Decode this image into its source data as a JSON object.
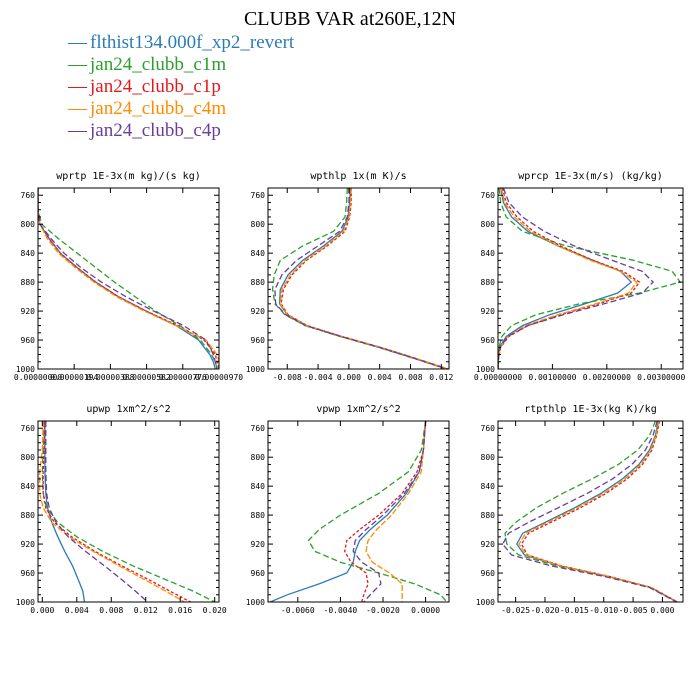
{
  "title": "CLUBB VAR at260E,12N",
  "colors": {
    "flthist134.000f_xp2_revert": "#2b7bb9",
    "jan24_clubb_c1m": "#2ca02c",
    "jan24_clubb_c1p": "#e31a1c",
    "jan24_clubb_c4m": "#ff8c00",
    "jan24_clubb_c4p": "#6a3d9a"
  },
  "legend": [
    {
      "label": "flthist134.000f_xp2_revert",
      "color": "#2b7bb9"
    },
    {
      "label": "jan24_clubb_c1m",
      "color": "#2ca02c"
    },
    {
      "label": "jan24_clubb_c1p",
      "color": "#e31a1c"
    },
    {
      "label": "jan24_clubb_c4m",
      "color": "#ff8c00"
    },
    {
      "label": "jan24_clubb_c4p",
      "color": "#6a3d9a"
    }
  ],
  "chart_data": [
    {
      "type": "line",
      "title": "wprtp  1E-3x(m kg)/(s kg)",
      "xlim": [
        0.0,
        9.7e-06
      ],
      "ylim": [
        1000,
        750
      ],
      "xticks": [
        0.0,
        1.94e-06,
        3.88e-06,
        5.82e-06,
        7.76e-06,
        9.7e-06
      ],
      "xtick_labels": [
        "0.00000000",
        "0.00000194",
        "0.00000388",
        "0.00000582",
        "0.00000776",
        "0.00000970"
      ],
      "yticks": [
        760,
        800,
        840,
        880,
        920,
        960,
        1000
      ],
      "y": [
        750,
        780,
        800,
        820,
        840,
        860,
        880,
        900,
        920,
        940,
        960,
        980,
        990,
        1000
      ],
      "series": [
        {
          "name": "flthist134.000f_xp2_revert",
          "x": [
            0.0,
            0.0,
            1e-07,
            6e-07,
            1.2e-06,
            2.1e-06,
            3.1e-06,
            4.3e-06,
            5.8e-06,
            7.4e-06,
            8.6e-06,
            9.2e-06,
            9.4e-06,
            9.5e-06
          ]
        },
        {
          "name": "jan24_clubb_c1m",
          "x": [
            0.0,
            0.0,
            2e-07,
            1.1e-06,
            2.1e-06,
            3.1e-06,
            4.1e-06,
            5.2e-06,
            6.3e-06,
            7.6e-06,
            8.7e-06,
            9.3e-06,
            9.5e-06,
            9.6e-06
          ]
        },
        {
          "name": "jan24_clubb_c1p",
          "x": [
            0.0,
            0.0,
            1e-07,
            6e-07,
            1.2e-06,
            2.1e-06,
            3.1e-06,
            4.3e-06,
            5.8e-06,
            7.5e-06,
            8.9e-06,
            9.5e-06,
            9.6e-06,
            9.7e-06
          ]
        },
        {
          "name": "jan24_clubb_c4m",
          "x": [
            0.0,
            0.0,
            1e-07,
            5e-07,
            1.1e-06,
            2e-06,
            3e-06,
            4.2e-06,
            5.7e-06,
            7.4e-06,
            9e-06,
            9.6e-06,
            9.7e-06,
            9.7e-06
          ]
        },
        {
          "name": "jan24_clubb_c4p",
          "x": [
            0.0,
            0.0,
            1e-07,
            7e-07,
            1.4e-06,
            2.3e-06,
            3.4e-06,
            4.7e-06,
            6.2e-06,
            7.8e-06,
            9e-06,
            9.4e-06,
            9.5e-06,
            9.6e-06
          ]
        }
      ]
    },
    {
      "type": "line",
      "title": "wpthlp  1x(m K)/s",
      "xlim": [
        -0.0105,
        0.013
      ],
      "ylim": [
        1000,
        750
      ],
      "xticks": [
        -0.008,
        -0.004,
        0.0,
        0.004,
        0.008,
        0.012
      ],
      "xtick_labels": [
        "-0.008",
        "-0.004",
        "0.000",
        "0.004",
        "0.008",
        "0.012"
      ],
      "yticks": [
        760,
        800,
        840,
        880,
        920,
        960,
        1000
      ],
      "y": [
        750,
        770,
        790,
        810,
        830,
        850,
        870,
        890,
        910,
        925,
        940,
        955,
        970,
        985,
        1000
      ],
      "series": [
        {
          "name": "flthist134.000f_xp2_revert",
          "x": [
            0.0002,
            0.0001,
            -0.0001,
            -0.0009,
            -0.0033,
            -0.006,
            -0.0079,
            -0.0089,
            -0.009,
            -0.008,
            -0.0055,
            -0.001,
            0.004,
            0.0085,
            0.0128
          ]
        },
        {
          "name": "jan24_clubb_c1m",
          "x": [
            -0.0002,
            -0.0003,
            -0.0005,
            -0.002,
            -0.006,
            -0.0089,
            -0.0097,
            -0.0099,
            -0.0096,
            -0.0083,
            -0.0057,
            -0.0012,
            0.0038,
            0.0083,
            0.0126
          ]
        },
        {
          "name": "jan24_clubb_c1p",
          "x": [
            0.0003,
            0.0003,
            0.0001,
            -0.0005,
            -0.0028,
            -0.0055,
            -0.0074,
            -0.0085,
            -0.0088,
            -0.0079,
            -0.0054,
            -0.0009,
            0.0041,
            0.0086,
            0.0129
          ]
        },
        {
          "name": "jan24_clubb_c4m",
          "x": [
            0.0003,
            0.0002,
            0.0,
            -0.0007,
            -0.003,
            -0.0057,
            -0.0076,
            -0.0087,
            -0.0089,
            -0.008,
            -0.0055,
            -0.001,
            0.004,
            0.0085,
            0.0128
          ]
        },
        {
          "name": "jan24_clubb_c4p",
          "x": [
            0.0001,
            0.0,
            -0.0002,
            -0.0012,
            -0.004,
            -0.0068,
            -0.0087,
            -0.0096,
            -0.0095,
            -0.0082,
            -0.0056,
            -0.0011,
            0.0039,
            0.0084,
            0.0127
          ]
        }
      ]
    },
    {
      "type": "line",
      "title": "wprcp  1E-3x(m/s) (kg/kg)",
      "xlim": [
        0.0,
        0.0034
      ],
      "ylim": [
        1000,
        750
      ],
      "xticks": [
        0.0,
        0.001,
        0.002,
        0.003
      ],
      "xtick_labels": [
        "0.00000000",
        "0.00100000",
        "0.00200000",
        "0.00300000"
      ],
      "yticks": [
        760,
        800,
        840,
        880,
        920,
        960,
        1000
      ],
      "y": [
        750,
        770,
        790,
        810,
        830,
        850,
        865,
        880,
        895,
        910,
        925,
        940,
        955,
        970,
        985,
        1000
      ],
      "series": [
        {
          "name": "flthist134.000f_xp2_revert",
          "x": [
            5e-05,
            0.0001,
            0.00025,
            0.00055,
            0.0011,
            0.00175,
            0.00225,
            0.00245,
            0.0022,
            0.0016,
            0.00095,
            0.00045,
            0.00015,
            3e-05,
            1e-05,
            0.0
          ]
        },
        {
          "name": "jan24_clubb_c1m",
          "x": [
            2e-05,
            5e-05,
            0.00015,
            0.00045,
            0.00125,
            0.0025,
            0.0032,
            0.00335,
            0.0026,
            0.0015,
            0.0007,
            0.00025,
            7e-05,
            2e-05,
            0.0,
            0.0
          ]
        },
        {
          "name": "jan24_clubb_c1p",
          "x": [
            8e-05,
            0.00015,
            0.00035,
            0.00065,
            0.00115,
            0.00175,
            0.0023,
            0.0026,
            0.00245,
            0.00185,
            0.00115,
            0.00055,
            0.0002,
            5e-05,
            1e-05,
            0.0
          ]
        },
        {
          "name": "jan24_clubb_c4m",
          "x": [
            6e-05,
            0.00012,
            0.0003,
            0.0006,
            0.0011,
            0.0017,
            0.00225,
            0.00255,
            0.0024,
            0.0018,
            0.0011,
            0.0005,
            0.00018,
            4e-05,
            1e-05,
            0.0
          ]
        },
        {
          "name": "jan24_clubb_c4p",
          "x": [
            0.0001,
            0.0002,
            0.00045,
            0.00085,
            0.0014,
            0.0021,
            0.00265,
            0.00285,
            0.00265,
            0.00195,
            0.0012,
            0.00055,
            0.00018,
            4e-05,
            1e-05,
            0.0
          ]
        }
      ]
    },
    {
      "type": "line",
      "title": "upwp  1xm^2/s^2",
      "xlim": [
        -0.0005,
        0.0205
      ],
      "ylim": [
        1000,
        750
      ],
      "xticks": [
        0.0,
        0.004,
        0.008,
        0.012,
        0.016,
        0.02
      ],
      "xtick_labels": [
        "0.000",
        "0.004",
        "0.008",
        "0.012",
        "0.016",
        "0.020"
      ],
      "yticks": [
        760,
        800,
        840,
        880,
        920,
        960,
        1000
      ],
      "y": [
        750,
        790,
        820,
        850,
        870,
        890,
        910,
        930,
        950,
        970,
        985,
        1000
      ],
      "series": [
        {
          "name": "flthist134.000f_xp2_revert",
          "x": [
            0.0003,
            0.0003,
            0.0003,
            0.0004,
            0.0006,
            0.0011,
            0.0018,
            0.0026,
            0.0035,
            0.0042,
            0.0047,
            0.0049
          ]
        },
        {
          "name": "jan24_clubb_c1m",
          "x": [
            0.0002,
            0.0001,
            0.0,
            0.0001,
            0.0005,
            0.0018,
            0.004,
            0.007,
            0.0105,
            0.0145,
            0.0175,
            0.02
          ]
        },
        {
          "name": "jan24_clubb_c1p",
          "x": [
            0.0003,
            0.0002,
            0.0001,
            0.0001,
            0.0004,
            0.0014,
            0.0034,
            0.0061,
            0.0092,
            0.0125,
            0.0148,
            0.0172
          ]
        },
        {
          "name": "jan24_clubb_c4m",
          "x": [
            0.0001,
            0.0,
            -0.0003,
            -0.0003,
            0.0001,
            0.0011,
            0.0031,
            0.0059,
            0.0089,
            0.012,
            0.0143,
            0.0165
          ]
        },
        {
          "name": "jan24_clubb_c4p",
          "x": [
            0.0004,
            0.0004,
            0.0004,
            0.0005,
            0.0008,
            0.0016,
            0.003,
            0.005,
            0.0072,
            0.0093,
            0.0108,
            0.0122
          ]
        }
      ]
    },
    {
      "type": "line",
      "title": "vpwp  1xm^2/s^2",
      "xlim": [
        -0.0074,
        0.0011
      ],
      "ylim": [
        1000,
        750
      ],
      "xticks": [
        -0.006,
        -0.004,
        -0.002,
        0.0
      ],
      "xtick_labels": [
        "-0.0060",
        "-0.0040",
        "-0.0020",
        "0.0000"
      ],
      "yticks": [
        760,
        800,
        840,
        880,
        920,
        960,
        1000
      ],
      "y": [
        750,
        790,
        820,
        850,
        880,
        900,
        915,
        930,
        945,
        960,
        975,
        990,
        1000
      ],
      "series": [
        {
          "name": "flthist134.000f_xp2_revert",
          "x": [
            0.0,
            -0.0001,
            -0.0003,
            -0.0009,
            -0.0018,
            -0.0026,
            -0.0031,
            -0.0033,
            -0.0034,
            -0.0037,
            -0.005,
            -0.0065,
            -0.0073
          ]
        },
        {
          "name": "jan24_clubb_c1m",
          "x": [
            0.0,
            -0.0002,
            -0.0008,
            -0.0022,
            -0.004,
            -0.005,
            -0.0055,
            -0.0052,
            -0.004,
            -0.0022,
            -0.0005,
            0.0007,
            0.001
          ]
        },
        {
          "name": "jan24_clubb_c1p",
          "x": [
            0.0,
            -0.0001,
            -0.0004,
            -0.0011,
            -0.0022,
            -0.0031,
            -0.0037,
            -0.0038,
            -0.0035,
            -0.0028,
            -0.0027,
            -0.0029,
            -0.003
          ]
        },
        {
          "name": "jan24_clubb_c4m",
          "x": [
            0.0,
            -0.0001,
            -0.0002,
            -0.0008,
            -0.0016,
            -0.0023,
            -0.0027,
            -0.0028,
            -0.0025,
            -0.0017,
            -0.0011,
            -0.0011,
            -0.0011
          ]
        },
        {
          "name": "jan24_clubb_c4p",
          "x": [
            0.0,
            -0.0001,
            -0.0003,
            -0.001,
            -0.002,
            -0.0028,
            -0.0033,
            -0.0034,
            -0.003,
            -0.0022,
            -0.0021,
            -0.0026,
            -0.0029
          ]
        }
      ]
    },
    {
      "type": "line",
      "title": "rtpthlp  1E-3x(kg K)/kg",
      "xlim": [
        -0.028,
        0.0035
      ],
      "ylim": [
        1000,
        750
      ],
      "xticks": [
        -0.025,
        -0.02,
        -0.015,
        -0.01,
        -0.005,
        0.0
      ],
      "xtick_labels": [
        "-0.025",
        "-0.020",
        "-0.015",
        "-0.010",
        "-0.005",
        "0.000"
      ],
      "yticks": [
        760,
        800,
        840,
        880,
        920,
        960,
        1000
      ],
      "y": [
        750,
        770,
        790,
        810,
        830,
        850,
        870,
        890,
        905,
        920,
        935,
        950,
        965,
        980,
        1000
      ],
      "series": [
        {
          "name": "flthist134.000f_xp2_revert",
          "x": [
            -0.0007,
            -0.0012,
            -0.0022,
            -0.004,
            -0.0068,
            -0.0105,
            -0.015,
            -0.02,
            -0.0238,
            -0.0248,
            -0.0235,
            -0.0175,
            -0.009,
            -0.002,
            0.0025
          ]
        },
        {
          "name": "jan24_clubb_c1m",
          "x": [
            -0.0012,
            -0.0022,
            -0.0042,
            -0.0075,
            -0.012,
            -0.017,
            -0.0215,
            -0.025,
            -0.0268,
            -0.0265,
            -0.0245,
            -0.018,
            -0.0092,
            -0.002,
            0.0025
          ]
        },
        {
          "name": "jan24_clubb_c1p",
          "x": [
            -0.0005,
            -0.001,
            -0.0018,
            -0.0034,
            -0.006,
            -0.0096,
            -0.014,
            -0.019,
            -0.0228,
            -0.024,
            -0.023,
            -0.0172,
            -0.0088,
            -0.0019,
            0.0026
          ]
        },
        {
          "name": "jan24_clubb_c4m",
          "x": [
            -0.0006,
            -0.0011,
            -0.002,
            -0.0037,
            -0.0064,
            -0.01,
            -0.0145,
            -0.0195,
            -0.0233,
            -0.0244,
            -0.0232,
            -0.0174,
            -0.0089,
            -0.002,
            0.0025
          ]
        },
        {
          "name": "jan24_clubb_c4p",
          "x": [
            -0.0009,
            -0.0016,
            -0.0029,
            -0.0052,
            -0.0085,
            -0.0128,
            -0.0178,
            -0.0228,
            -0.0262,
            -0.0272,
            -0.0257,
            -0.019,
            -0.0097,
            -0.0022,
            0.0024
          ]
        }
      ]
    }
  ]
}
